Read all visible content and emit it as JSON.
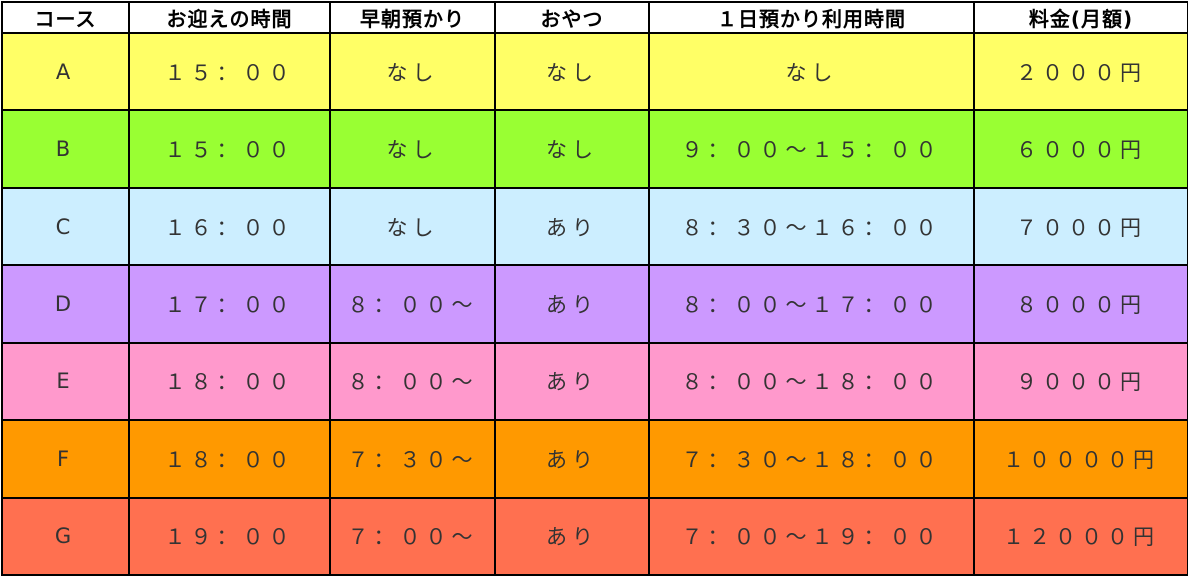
{
  "table": {
    "header": [
      "コース",
      "お迎えの時間",
      "早朝預かり",
      "おやつ",
      "１日預かり利用時間",
      "料金(月額)"
    ],
    "rows": [
      [
        "A",
        "１５：００",
        "なし",
        "なし",
        "なし",
        "２０００円"
      ],
      [
        "B",
        "１５：００",
        "なし",
        "なし",
        "９：００～１５：００",
        "６０００円"
      ],
      [
        "C",
        "１６：００",
        "なし",
        "あり",
        "８：３０～１６：００",
        "７０００円"
      ],
      [
        "D",
        "１７：００",
        "８：００～",
        "あり",
        "８：００～１７：００",
        "８０００円"
      ],
      [
        "E",
        "１８：００",
        "８：００～",
        "あり",
        "８：００～１８：００",
        "９０００円"
      ],
      [
        "F",
        "１８：００",
        "７：３０～",
        "あり",
        "７：３０～１８：００",
        "１００００円"
      ],
      [
        "G",
        "１９：００",
        "７：００～",
        "あり",
        "７：００～１９：００",
        "１２０００円"
      ]
    ]
  }
}
